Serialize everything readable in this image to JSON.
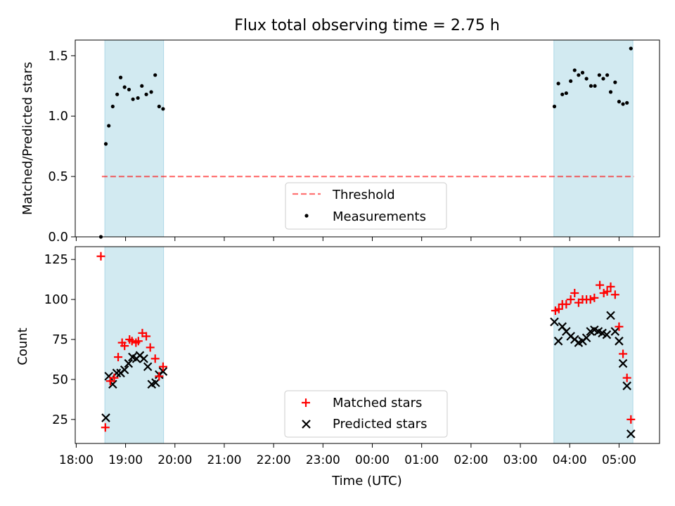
{
  "chart_data": {
    "title": "Flux total observing time = 2.75 h",
    "x_tick_labels": [
      "18:00",
      "19:00",
      "20:00",
      "21:00",
      "22:00",
      "23:00",
      "00:00",
      "01:00",
      "02:00",
      "03:00",
      "04:00",
      "05:00"
    ],
    "x_tick_hours": [
      0,
      1,
      2,
      3,
      4,
      5,
      6,
      7,
      8,
      9,
      10,
      11
    ],
    "xlabel": "Time (UTC)",
    "xlim_hours_since_1800": [
      -0.02,
      11.82
    ],
    "shaded_intervals_hours_since_1800": [
      [
        0.58,
        1.77
      ],
      [
        9.68,
        11.28
      ]
    ],
    "colors": {
      "span": "#add8e6",
      "threshold": "#ff0000",
      "matched": "#ff0000",
      "predicted": "#000000",
      "measurement": "#000000"
    },
    "top": {
      "type": "scatter",
      "ylabel": "Matched/Predicted stars",
      "ylim": [
        0,
        1.63
      ],
      "y_tick_labels": [
        "0.0",
        "0.5",
        "1.0",
        "1.5"
      ],
      "y_tick_values": [
        0,
        0.5,
        1.0,
        1.5
      ],
      "threshold": {
        "value": 0.5,
        "x_range": [
          0.52,
          11.3
        ],
        "label": "Threshold"
      },
      "series_label": "Measurements",
      "x": [
        0.5,
        0.6,
        0.66,
        0.74,
        0.83,
        0.9,
        0.98,
        1.07,
        1.15,
        1.25,
        1.33,
        1.42,
        1.52,
        1.6,
        1.68,
        1.76,
        9.69,
        9.77,
        9.85,
        9.93,
        10.02,
        10.1,
        10.18,
        10.26,
        10.34,
        10.43,
        10.51,
        10.6,
        10.68,
        10.76,
        10.83,
        10.92,
        11.0,
        11.08,
        11.16,
        11.24
      ],
      "y": [
        0.0,
        0.77,
        0.92,
        1.08,
        1.18,
        1.32,
        1.24,
        1.22,
        1.14,
        1.15,
        1.25,
        1.18,
        1.2,
        1.34,
        1.08,
        1.06,
        1.08,
        1.27,
        1.18,
        1.19,
        1.29,
        1.38,
        1.34,
        1.36,
        1.31,
        1.25,
        1.25,
        1.34,
        1.31,
        1.34,
        1.2,
        1.28,
        1.12,
        1.1,
        1.11,
        1.56
      ]
    },
    "bottom": {
      "type": "scatter",
      "ylabel": "Count",
      "ylim": [
        10,
        133
      ],
      "y_tick_labels": [
        "25",
        "50",
        "75",
        "100",
        "125"
      ],
      "y_tick_values": [
        25,
        50,
        75,
        100,
        125
      ],
      "series": [
        {
          "name": "Matched stars",
          "x": [
            0.5,
            0.59,
            0.69,
            0.77,
            0.85,
            0.93,
            0.98,
            1.08,
            1.13,
            1.21,
            1.26,
            1.34,
            1.42,
            1.5,
            1.6,
            1.68,
            1.76,
            9.71,
            9.78,
            9.85,
            9.93,
            10.02,
            10.1,
            10.18,
            10.26,
            10.34,
            10.42,
            10.5,
            10.61,
            10.69,
            10.76,
            10.83,
            10.92,
            11.0,
            11.08,
            11.16,
            11.24
          ],
          "values": [
            127,
            20,
            49,
            51,
            64,
            73,
            71,
            75,
            74,
            73,
            74,
            79,
            77,
            70,
            63,
            52,
            58,
            93,
            94,
            97,
            97,
            100,
            104,
            98,
            100,
            100,
            100,
            101,
            109,
            104,
            105,
            108,
            103,
            83,
            66,
            51,
            25
          ]
        },
        {
          "name": "Predicted stars",
          "x": [
            0.6,
            0.66,
            0.74,
            0.82,
            0.9,
            0.98,
            1.06,
            1.14,
            1.22,
            1.29,
            1.37,
            1.45,
            1.53,
            1.61,
            1.68,
            1.76,
            9.69,
            9.77,
            9.85,
            9.93,
            10.02,
            10.1,
            10.18,
            10.26,
            10.34,
            10.42,
            10.5,
            10.58,
            10.66,
            10.75,
            10.83,
            10.92,
            11.0,
            11.08,
            11.16,
            11.24
          ],
          "values": [
            26,
            52,
            47,
            54,
            54,
            56,
            60,
            64,
            63,
            65,
            63,
            58,
            47,
            48,
            53,
            55,
            86,
            74,
            83,
            80,
            77,
            75,
            73,
            74,
            76,
            80,
            81,
            80,
            79,
            78,
            90,
            80,
            74,
            60,
            46,
            16
          ]
        }
      ]
    }
  }
}
